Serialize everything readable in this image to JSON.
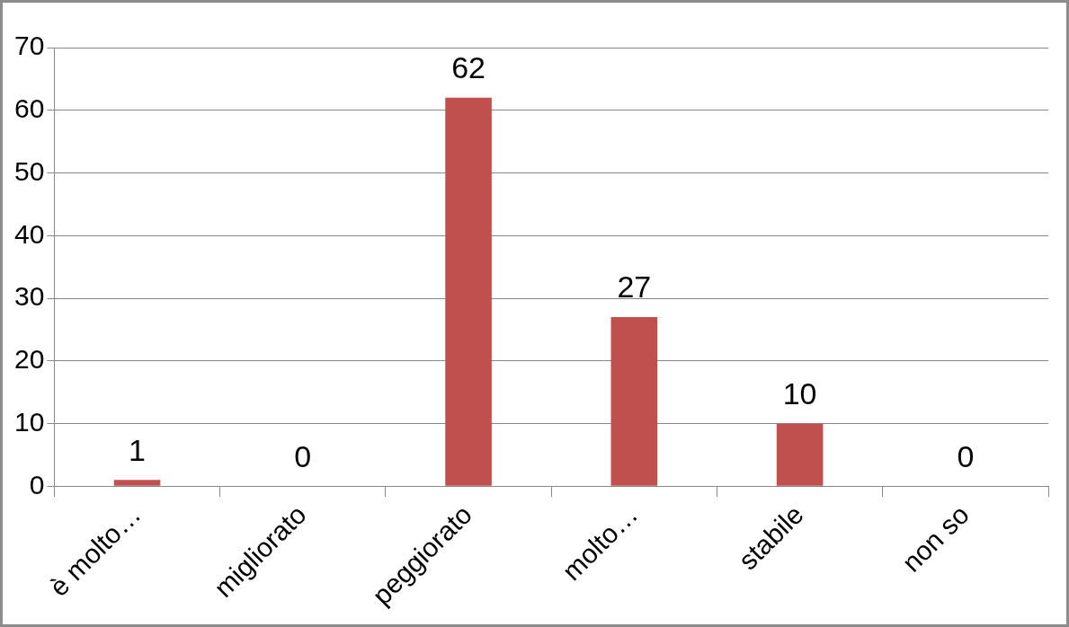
{
  "chart_data": {
    "type": "bar",
    "categories": [
      "è molto…",
      "migliorato",
      "peggiorato",
      "molto…",
      "stabile",
      "non so"
    ],
    "values": [
      1,
      0,
      62,
      27,
      10,
      0
    ],
    "color": "#c0504d",
    "ylim": [
      0,
      70
    ],
    "yticks": [
      0,
      10,
      20,
      30,
      40,
      50,
      60,
      70
    ],
    "grid": "y",
    "data_labels": true,
    "legend": false
  }
}
